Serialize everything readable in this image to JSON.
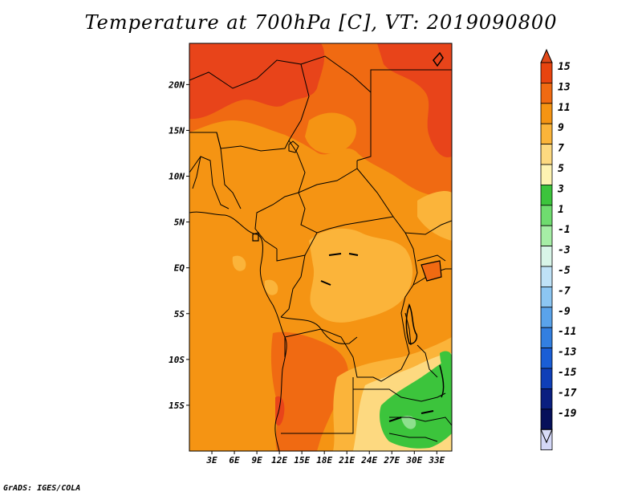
{
  "title": "Temperature at 700hPa [C], VT: 2019090800",
  "credit": "GrADS: IGES/COLA",
  "map": {
    "lon_range": [
      0,
      35
    ],
    "lat_range": [
      -20,
      24.5
    ],
    "lon_ticks": [
      {
        "value": 3,
        "label": "3E"
      },
      {
        "value": 6,
        "label": "6E"
      },
      {
        "value": 9,
        "label": "9E"
      },
      {
        "value": 12,
        "label": "12E"
      },
      {
        "value": 15,
        "label": "15E"
      },
      {
        "value": 18,
        "label": "18E"
      },
      {
        "value": 21,
        "label": "21E"
      },
      {
        "value": 24,
        "label": "24E"
      },
      {
        "value": 27,
        "label": "27E"
      },
      {
        "value": 30,
        "label": "30E"
      },
      {
        "value": 33,
        "label": "33E"
      }
    ],
    "lat_ticks": [
      {
        "value": 20,
        "label": "20N"
      },
      {
        "value": 15,
        "label": "15N"
      },
      {
        "value": 10,
        "label": "10N"
      },
      {
        "value": 5,
        "label": "5N"
      },
      {
        "value": 0,
        "label": "EQ"
      },
      {
        "value": -5,
        "label": "5S"
      },
      {
        "value": -10,
        "label": "10S"
      },
      {
        "value": -15,
        "label": "15S"
      }
    ]
  },
  "colorbar": {
    "labels": [
      "15",
      "13",
      "11",
      "9",
      "7",
      "5",
      "3",
      "1",
      "-1",
      "-3",
      "-5",
      "-7",
      "-9",
      "-11",
      "-13",
      "-15",
      "-17",
      "-19"
    ],
    "colors": [
      "#d42b0d",
      "#e8440f",
      "#f06a12",
      "#f59413",
      "#fbb43a",
      "#fdd980",
      "#fef3b2",
      "#3cc43c",
      "#6fdc6f",
      "#a6eea6",
      "#d8f5e8",
      "#bfe2f7",
      "#8cc6f2",
      "#5aa3ea",
      "#337fe0",
      "#1a5ed6",
      "#0f3fb8",
      "#0a1f80",
      "#06105a",
      "#d4d8f8"
    ],
    "top_color": "#e04818",
    "bottom_color": "#d8dcf8"
  },
  "colors": {
    "hot": "#e8441a",
    "warm": "#f06a12",
    "orange": "#f59413",
    "light_orange": "#fbb43a",
    "pale": "#fdd980",
    "green": "#3cc43c",
    "lightgreen": "#8de08d",
    "border": "#000000"
  }
}
